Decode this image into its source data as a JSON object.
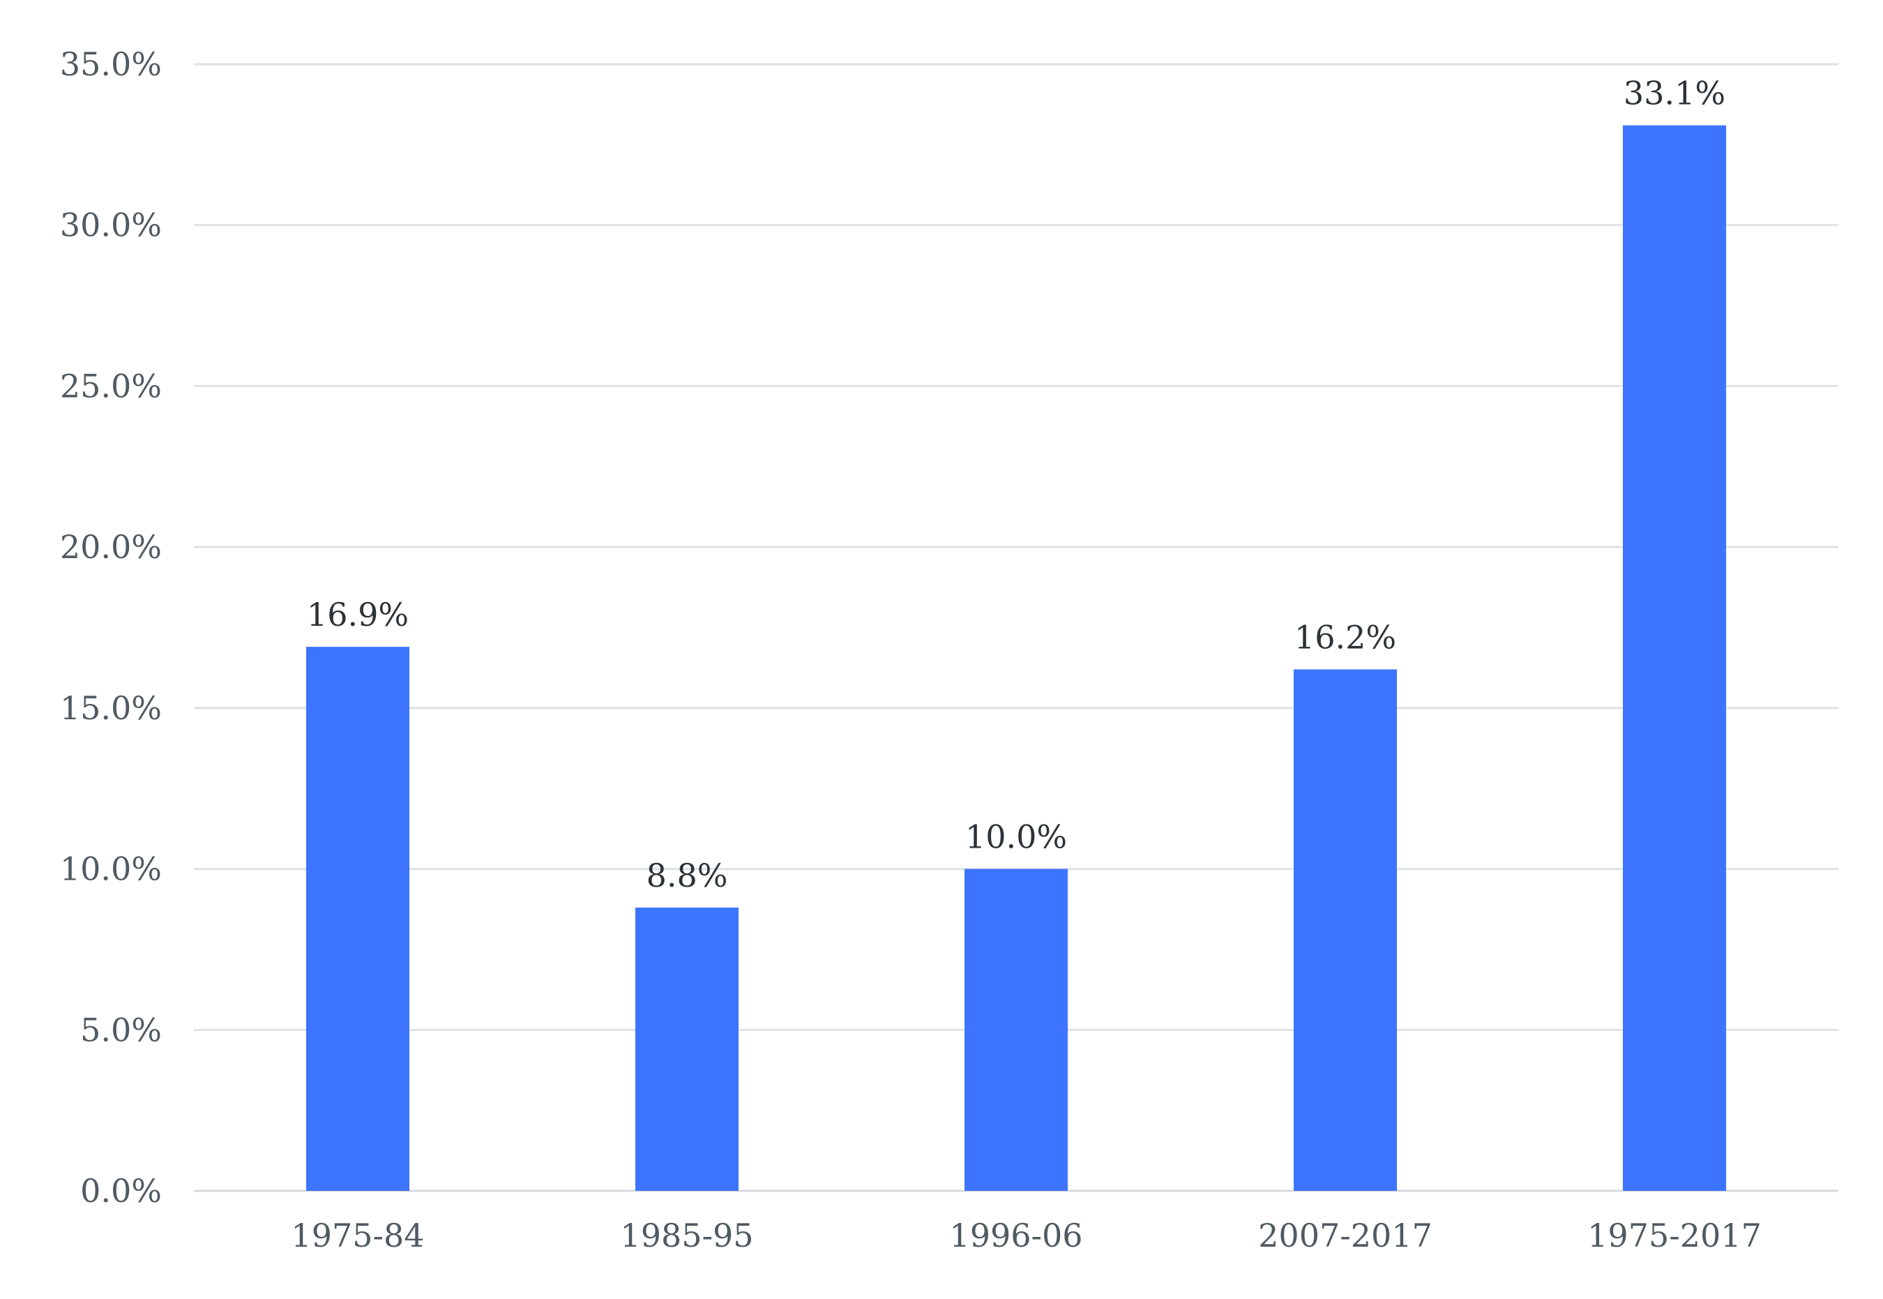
{
  "chart_data": {
    "type": "bar",
    "title": "",
    "xlabel": "",
    "ylabel": "",
    "categories": [
      "1975-84",
      "1985-95",
      "1996-06",
      "2007-2017",
      "1975-2017"
    ],
    "values": [
      16.9,
      8.8,
      10.0,
      16.2,
      33.1
    ],
    "value_labels": [
      "16.9%",
      "8.8%",
      "10.0%",
      "16.2%",
      "33.1%"
    ],
    "ylim": [
      0,
      35
    ],
    "y_ticks": [
      0,
      5,
      10,
      15,
      20,
      25,
      30,
      35
    ],
    "y_tick_labels": [
      "0.0%",
      "5.0%",
      "10.0%",
      "15.0%",
      "20.0%",
      "25.0%",
      "30.0%",
      "35.0%"
    ],
    "grid": true,
    "legend": "none",
    "colors": {
      "bar": "#3d74ff",
      "grid": "#dde2e6",
      "tick_text": "#4f5a61",
      "label_text": "#2c3338"
    }
  }
}
